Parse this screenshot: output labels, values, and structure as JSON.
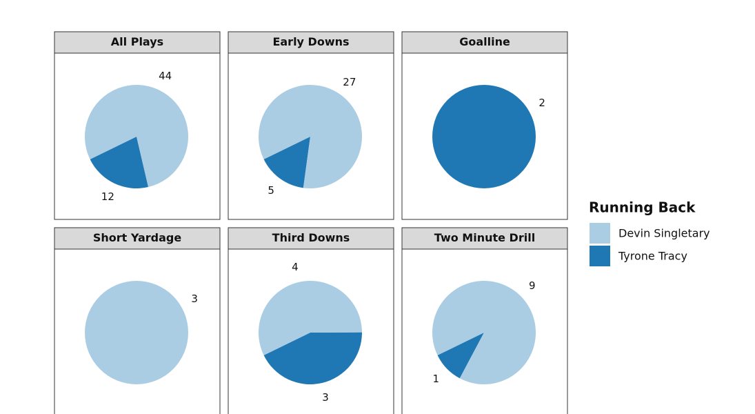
{
  "chart_data": {
    "type": "pie",
    "legend_title": "Running Back",
    "categories": [
      "Devin Singletary",
      "Tyrone Tracy"
    ],
    "colors": [
      "#abcde3",
      "#1f78b4"
    ],
    "facets": [
      {
        "title": "All Plays",
        "values": [
          44,
          12
        ]
      },
      {
        "title": "Early Downs",
        "values": [
          27,
          5
        ]
      },
      {
        "title": "Goalline",
        "values": [
          null,
          2
        ]
      },
      {
        "title": "Short Yardage",
        "values": [
          3,
          null
        ]
      },
      {
        "title": "Third Downs",
        "values": [
          4,
          3
        ]
      },
      {
        "title": "Two Minute Drill",
        "values": [
          9,
          1
        ]
      }
    ]
  }
}
